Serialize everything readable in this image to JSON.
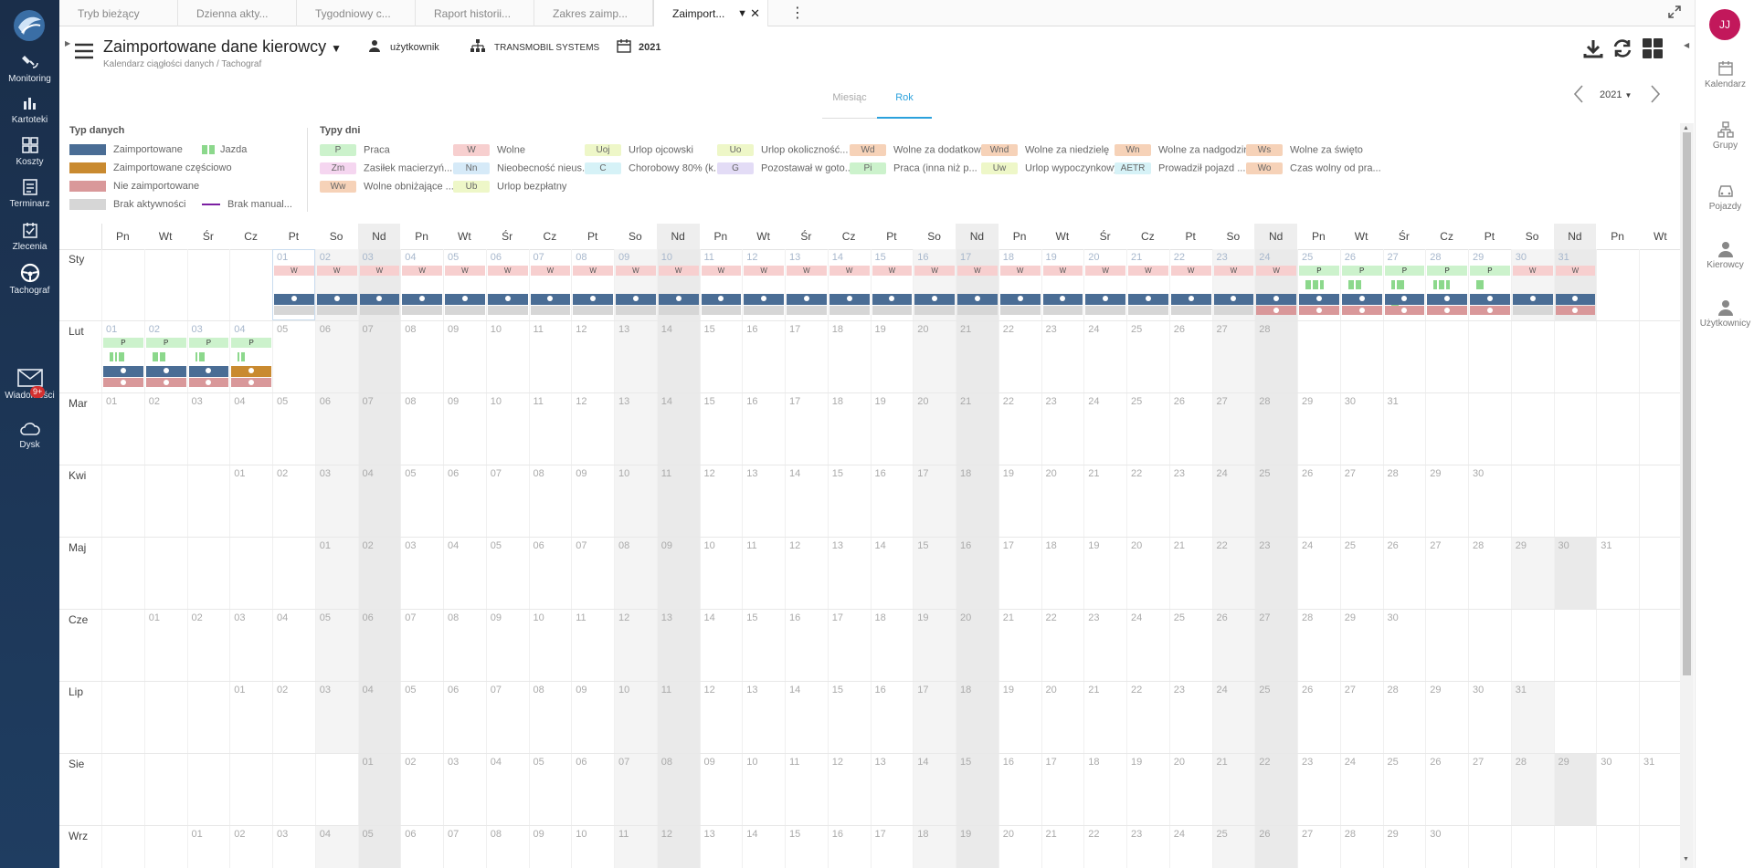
{
  "left_nav": {
    "items": [
      {
        "label": "Monitoring",
        "icon": "satellite-icon"
      },
      {
        "label": "Kartoteki",
        "icon": "folder-chart-icon"
      },
      {
        "label": "Koszty",
        "icon": "grid-icon"
      },
      {
        "label": "Terminarz",
        "icon": "list-icon"
      },
      {
        "label": "Zlecenia",
        "icon": "calendar-check-icon"
      },
      {
        "label": "Tachograf",
        "icon": "steering-wheel-icon"
      },
      {
        "label": "Wiadomości",
        "icon": "envelope-icon",
        "badge": "9+"
      },
      {
        "label": "Dysk",
        "icon": "cloud-icon"
      }
    ]
  },
  "right_nav": {
    "avatar": "JJ",
    "items": [
      {
        "label": "Kalendarz",
        "icon": "calendar-icon"
      },
      {
        "label": "Grupy",
        "icon": "group-icon"
      },
      {
        "label": "Pojazdy",
        "icon": "car-icon"
      },
      {
        "label": "Kierowcy",
        "icon": "driver-icon"
      },
      {
        "label": "Użytkownicy",
        "icon": "user-icon"
      }
    ]
  },
  "tabs": [
    {
      "label": "Tryb bieżący",
      "active": false
    },
    {
      "label": "Dzienna akty...",
      "active": false
    },
    {
      "label": "Tygodniowy c...",
      "active": false
    },
    {
      "label": "Raport historii...",
      "active": false
    },
    {
      "label": "Zakres zaimp...",
      "active": false
    },
    {
      "label": "Zaimport...",
      "active": true
    }
  ],
  "header": {
    "title": "Zaimportowane dane kierowcy",
    "breadcrumb": "Kalendarz ciągłości danych  /  Tachograf",
    "user_label": "użytkownik",
    "company": "TRANSMOBIL SYSTEMS",
    "year": "2021"
  },
  "view_tabs": {
    "month": "Miesiąc",
    "year": "Rok",
    "active": "year"
  },
  "year_selector": "2021",
  "legend": {
    "data_types_title": "Typ danych",
    "data_types": [
      {
        "label": "Zaimportowane",
        "color": "#4a6d95"
      },
      {
        "label": "Zaimportowane częściowo",
        "color": "#c98a30"
      },
      {
        "label": "Nie zaimportowane",
        "color": "#d9989a"
      },
      {
        "label": "Brak aktywności",
        "color": "#d6d6d6"
      },
      {
        "label": "Jazda",
        "color": "#8cd88c"
      },
      {
        "label": "Brak manual...",
        "color": "#7b1fa2"
      }
    ],
    "day_types_title": "Typy dni",
    "day_types": [
      {
        "code": "P",
        "label": "Praca",
        "color": "#ccf2cc"
      },
      {
        "code": "W",
        "label": "Wolne",
        "color": "#f7cfcf"
      },
      {
        "code": "Uoj",
        "label": "Urlop ojcowski",
        "color": "#eef7c8"
      },
      {
        "code": "Uo",
        "label": "Urlop okoliczność...",
        "color": "#eef7c8"
      },
      {
        "code": "Wd",
        "label": "Wolne za dodatkow...",
        "color": "#f6d2b8"
      },
      {
        "code": "Wnd",
        "label": "Wolne za niedzielę",
        "color": "#f6d2b8"
      },
      {
        "code": "Wn",
        "label": "Wolne za nadgodziny",
        "color": "#f6d2b8"
      },
      {
        "code": "Ws",
        "label": "Wolne za święto",
        "color": "#f6d2b8"
      },
      {
        "code": "Zm",
        "label": "Zasiłek macierzyń...",
        "color": "#f5d6f0"
      },
      {
        "code": "Nn",
        "label": "Nieobecność nieus...",
        "color": "#d6eaf8"
      },
      {
        "code": "C",
        "label": "Chorobowy 80% (k...",
        "color": "#d6f2f7"
      },
      {
        "code": "G",
        "label": "Pozostawał w goto...",
        "color": "#e3dcf6"
      },
      {
        "code": "Pi",
        "label": "Praca (inna niż p...",
        "color": "#ccf2cc"
      },
      {
        "code": "Uw",
        "label": "Urlop wypoczynkowy",
        "color": "#eef7c8"
      },
      {
        "code": "AETR",
        "label": "Prowadził pojazd ...",
        "color": "#d6f2f7"
      },
      {
        "code": "Wo",
        "label": "Czas wolny od pra...",
        "color": "#f6d2b8"
      },
      {
        "code": "Ww",
        "label": "Wolne obniżające ...",
        "color": "#f6d2b8"
      },
      {
        "code": "Ub",
        "label": "Urlop bezpłatny",
        "color": "#eef7c8"
      }
    ]
  },
  "calendar": {
    "weekday_headers": [
      "Pn",
      "Wt",
      "Śr",
      "Cz",
      "Pt",
      "So",
      "Nd",
      "Pn",
      "Wt",
      "Śr",
      "Cz",
      "Pt",
      "So",
      "Nd",
      "Pn",
      "Wt",
      "Śr",
      "Cz",
      "Pt",
      "So",
      "Nd",
      "Pn",
      "Wt",
      "Śr",
      "Cz",
      "Pt",
      "So",
      "Nd",
      "Pn",
      "Wt",
      "Śr",
      "Cz",
      "Pt",
      "So",
      "Nd",
      "Pn",
      "Wt"
    ],
    "months": [
      {
        "label": "Sty",
        "offset": 4,
        "days": 31
      },
      {
        "label": "Lut",
        "offset": 0,
        "days": 28
      },
      {
        "label": "Mar",
        "offset": 0,
        "days": 31
      },
      {
        "label": "Kwi",
        "offset": 3,
        "days": 30
      },
      {
        "label": "Maj",
        "offset": 5,
        "days": 31
      },
      {
        "label": "Cze",
        "offset": 1,
        "days": 30
      },
      {
        "label": "Lip",
        "offset": 3,
        "days": 31
      },
      {
        "label": "Sie",
        "offset": 6,
        "days": 31
      },
      {
        "label": "Wrz",
        "offset": 2,
        "days": 30
      }
    ],
    "day_activity": [
      {
        "month": 0,
        "day": 1,
        "type": "W",
        "driver": "imported",
        "vehicle": "none"
      },
      {
        "month": 0,
        "day": 2,
        "type": "W",
        "driver": "imported",
        "vehicle": "none"
      },
      {
        "month": 0,
        "day": 3,
        "type": "W",
        "driver": "imported",
        "vehicle": "none"
      },
      {
        "month": 0,
        "day": 4,
        "type": "W",
        "driver": "imported",
        "vehicle": "none"
      },
      {
        "month": 0,
        "day": 5,
        "type": "W",
        "driver": "imported",
        "vehicle": "none"
      },
      {
        "month": 0,
        "day": 6,
        "type": "W",
        "driver": "imported",
        "vehicle": "none"
      },
      {
        "month": 0,
        "day": 7,
        "type": "W",
        "driver": "imported",
        "vehicle": "none"
      },
      {
        "month": 0,
        "day": 8,
        "type": "W",
        "driver": "imported",
        "vehicle": "none"
      },
      {
        "month": 0,
        "day": 9,
        "type": "W",
        "driver": "imported",
        "vehicle": "none"
      },
      {
        "month": 0,
        "day": 10,
        "type": "W",
        "driver": "imported",
        "vehicle": "none"
      },
      {
        "month": 0,
        "day": 11,
        "type": "W",
        "driver": "imported",
        "vehicle": "none"
      },
      {
        "month": 0,
        "day": 12,
        "type": "W",
        "driver": "imported",
        "vehicle": "none"
      },
      {
        "month": 0,
        "day": 13,
        "type": "W",
        "driver": "imported",
        "vehicle": "none"
      },
      {
        "month": 0,
        "day": 14,
        "type": "W",
        "driver": "imported",
        "vehicle": "none"
      },
      {
        "month": 0,
        "day": 15,
        "type": "W",
        "driver": "imported",
        "vehicle": "none"
      },
      {
        "month": 0,
        "day": 16,
        "type": "W",
        "driver": "imported",
        "vehicle": "none"
      },
      {
        "month": 0,
        "day": 17,
        "type": "W",
        "driver": "imported",
        "vehicle": "none"
      },
      {
        "month": 0,
        "day": 18,
        "type": "W",
        "driver": "imported",
        "vehicle": "none"
      },
      {
        "month": 0,
        "day": 19,
        "type": "W",
        "driver": "imported",
        "vehicle": "none"
      },
      {
        "month": 0,
        "day": 20,
        "type": "W",
        "driver": "imported",
        "vehicle": "none"
      },
      {
        "month": 0,
        "day": 21,
        "type": "W",
        "driver": "imported",
        "vehicle": "none"
      },
      {
        "month": 0,
        "day": 22,
        "type": "W",
        "driver": "imported",
        "vehicle": "none"
      },
      {
        "month": 0,
        "day": 23,
        "type": "W",
        "driver": "imported",
        "vehicle": "none"
      },
      {
        "month": 0,
        "day": 24,
        "type": "W",
        "driver": "imported",
        "vehicle": "not_imported"
      },
      {
        "month": 0,
        "day": 25,
        "type": "P",
        "driver": "imported",
        "vehicle": "not_imported",
        "drive": [
          3,
          3,
          2
        ]
      },
      {
        "month": 0,
        "day": 26,
        "type": "P",
        "driver": "imported",
        "vehicle": "not_imported",
        "drive": [
          3,
          3
        ]
      },
      {
        "month": 0,
        "day": 27,
        "type": "P",
        "driver": "imported",
        "vehicle": "not_imported",
        "drive": [
          2,
          4,
          4
        ]
      },
      {
        "month": 0,
        "day": 28,
        "type": "P",
        "driver": "imported",
        "vehicle": "not_imported",
        "drive": [
          2,
          3,
          2
        ]
      },
      {
        "month": 0,
        "day": 29,
        "type": "P",
        "driver": "imported",
        "vehicle": "not_imported",
        "drive": [
          4
        ]
      },
      {
        "month": 0,
        "day": 30,
        "type": "W",
        "driver": "imported",
        "vehicle": "none"
      },
      {
        "month": 0,
        "day": 31,
        "type": "W",
        "driver": "imported",
        "vehicle": "not_imported"
      },
      {
        "month": 1,
        "day": 1,
        "type": "P",
        "driver": "imported",
        "vehicle": "not_imported",
        "drive": [
          2,
          1,
          3
        ]
      },
      {
        "month": 1,
        "day": 2,
        "type": "P",
        "driver": "imported",
        "vehicle": "not_imported",
        "drive": [
          3,
          3
        ]
      },
      {
        "month": 1,
        "day": 3,
        "type": "P",
        "driver": "imported",
        "vehicle": "not_imported",
        "drive": [
          1,
          3
        ]
      },
      {
        "month": 1,
        "day": 4,
        "type": "P",
        "driver": "partial",
        "vehicle": "not_imported",
        "drive": [
          1,
          2
        ]
      }
    ]
  }
}
